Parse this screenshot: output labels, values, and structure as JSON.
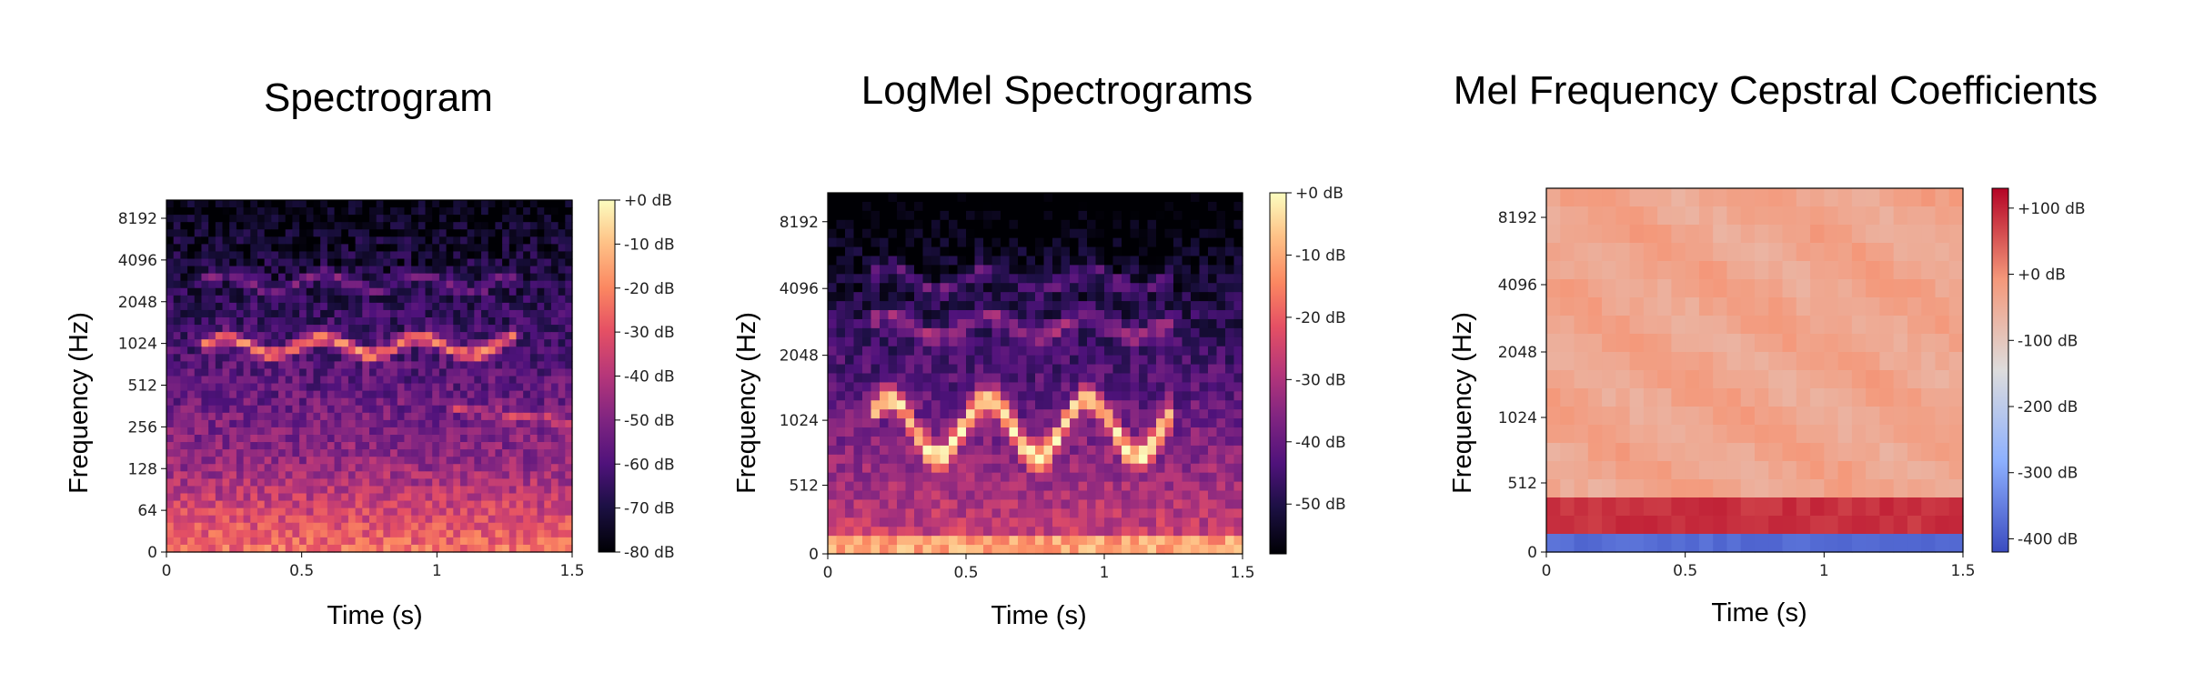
{
  "chart_data": [
    {
      "type": "heatmap",
      "title": "Spectrogram",
      "xlabel": "Time (s)",
      "ylabel": "Frequency (Hz)",
      "xlim": [
        0,
        1.5
      ],
      "x_ticks": [
        0,
        0.5,
        1,
        1.5
      ],
      "x_tick_labels": [
        "0",
        "0.5",
        "1",
        "1.5"
      ],
      "y_scale": "log",
      "y_ticks": [
        "0",
        "64",
        "128",
        "256",
        "512",
        "1024",
        "2048",
        "4096",
        "8192"
      ],
      "colormap": "magma",
      "colorbar": {
        "ticks": [
          "+0 dB",
          "-10 dB",
          "-20 dB",
          "-30 dB",
          "-40 dB",
          "-50 dB",
          "-60 dB",
          "-70 dB",
          "-80 dB"
        ],
        "range_db": [
          -80,
          0
        ]
      },
      "grid": false
    },
    {
      "type": "heatmap",
      "title": "LogMel Spectrograms",
      "xlabel": "Time (s)",
      "ylabel": "Frequency (Hz)",
      "xlim": [
        0,
        1.5
      ],
      "x_ticks": [
        0,
        0.5,
        1,
        1.5
      ],
      "x_tick_labels": [
        "0",
        "0.5",
        "1",
        "1.5"
      ],
      "y_scale": "mel",
      "y_ticks": [
        "0",
        "512",
        "1024",
        "2048",
        "4096",
        "8192"
      ],
      "colormap": "magma",
      "colorbar": {
        "ticks": [
          "+0 dB",
          "-10 dB",
          "-20 dB",
          "-30 dB",
          "-40 dB",
          "-50 dB"
        ],
        "range_db": [
          -58,
          0
        ]
      },
      "grid": false
    },
    {
      "type": "heatmap",
      "title": "Mel Frequency Cepstral Coefficients",
      "xlabel": "Time (s)",
      "ylabel": "Frequency (Hz)",
      "xlim": [
        0,
        1.5
      ],
      "x_ticks": [
        0,
        0.5,
        1,
        1.5
      ],
      "x_tick_labels": [
        "0",
        "0.5",
        "1",
        "1.5"
      ],
      "y_scale": "mel",
      "y_ticks": [
        "0",
        "512",
        "1024",
        "2048",
        "4096",
        "8192"
      ],
      "colormap": "coolwarm",
      "colorbar": {
        "ticks": [
          "+100 dB",
          "+0 dB",
          "-100 dB",
          "-200 dB",
          "-300 dB",
          "-400 dB"
        ],
        "range_db": [
          -420,
          130
        ]
      },
      "grid": false
    }
  ]
}
